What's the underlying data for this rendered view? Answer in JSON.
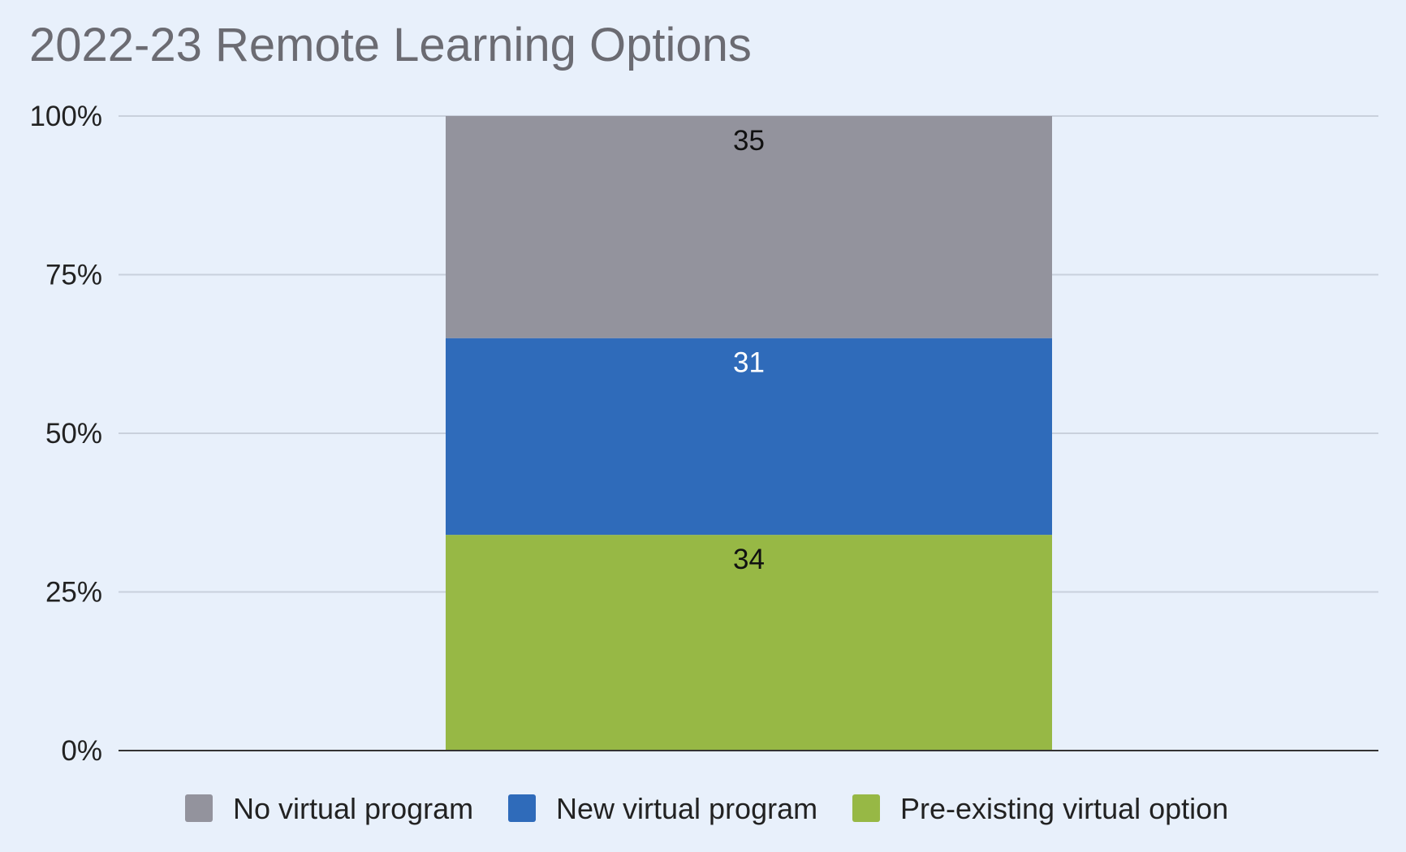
{
  "chart_data": {
    "type": "bar",
    "stacked": true,
    "normalized": true,
    "title": "2022-23 Remote Learning Options",
    "xlabel": "",
    "ylabel": "",
    "ylim": [
      0,
      100
    ],
    "yticks": [
      "0%",
      "25%",
      "50%",
      "75%",
      "100%"
    ],
    "yticks_values": [
      0,
      25,
      50,
      75,
      100
    ],
    "grid": true,
    "legend_position": "bottom",
    "categories": [
      ""
    ],
    "series": [
      {
        "name": "Pre-existing virtual option",
        "values": [
          34
        ],
        "color": "#97b845",
        "label_color": "#111111"
      },
      {
        "name": "New virtual program",
        "values": [
          31
        ],
        "color": "#2f6bba",
        "label_color": "#ffffff"
      },
      {
        "name": "No virtual program",
        "values": [
          35
        ],
        "color": "#93939d",
        "label_color": "#111111"
      }
    ],
    "legend_order": [
      "No virtual program",
      "New virtual program",
      "Pre-existing virtual option"
    ]
  },
  "colors": {
    "background": "#e8f0fb",
    "gridline": "#c9d0dc",
    "baseline": "#333333",
    "title": "#6b6b72"
  }
}
